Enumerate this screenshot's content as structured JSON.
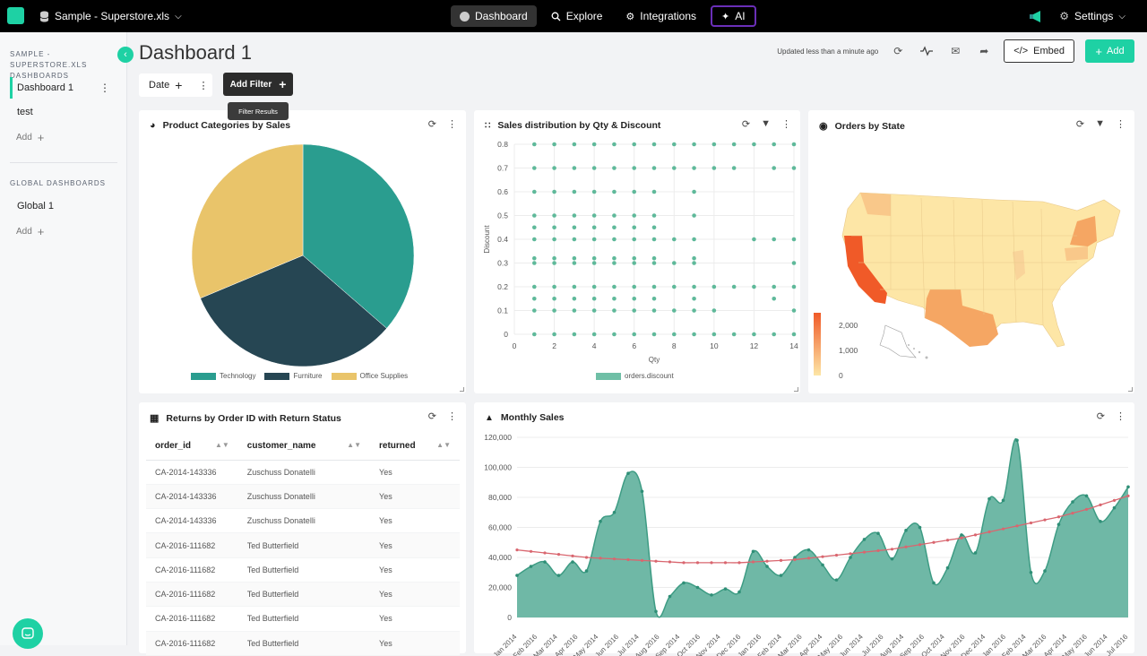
{
  "topbar": {
    "datasource": "Sample - Superstore.xls",
    "nav": [
      {
        "label": "Dashboard",
        "icon": "dashboard-icon"
      },
      {
        "label": "Explore",
        "icon": "search-icon"
      },
      {
        "label": "Integrations",
        "icon": "integrations-icon"
      },
      {
        "label": "AI",
        "icon": "sparkle-icon"
      }
    ],
    "settings_label": "Settings"
  },
  "sidebar": {
    "section1_title_line1": "SAMPLE - SUPERSTORE.XLS",
    "section1_title_line2": "DASHBOARDS",
    "dashboards": [
      "Dashboard 1",
      "test"
    ],
    "add_label": "Add",
    "section2_title": "GLOBAL DASHBOARDS",
    "global_dashboards": [
      "Global 1"
    ],
    "add_label2": "Add"
  },
  "header": {
    "title": "Dashboard 1",
    "updated": "Updated less than a minute ago",
    "embed_label": "Embed",
    "add_label": "Add"
  },
  "filters": {
    "date_label": "Date",
    "add_filter_label": "Add Filter",
    "tooltip": "Filter Results"
  },
  "colors": {
    "accent": "#1ed1a4",
    "teal": "#2a9d8f",
    "navy": "#264653",
    "yellow": "#e9c46a",
    "scatter": "#5fb99a",
    "area": "#6fb8a6",
    "trend": "#d9666f"
  },
  "cards": {
    "pie_title": "Product Categories by Sales",
    "scatter_title": "Sales distribution by Qty & Discount",
    "map_title": "Orders by State",
    "table_title": "Returns by Order ID with Return Status",
    "monthly_title": "Monthly Sales"
  },
  "chart_data": [
    {
      "type": "pie",
      "title": "Product Categories by Sales",
      "categories": [
        "Technology",
        "Furniture",
        "Office Supplies"
      ],
      "values": [
        36.4,
        32.3,
        31.3
      ]
    },
    {
      "type": "scatter",
      "title": "Sales distribution by Qty & Discount",
      "xlabel": "Qty",
      "ylabel": "Discount",
      "xlim": [
        0,
        14
      ],
      "ylim": [
        0,
        0.8
      ],
      "xticks": [
        "0",
        "2",
        "4",
        "6",
        "8",
        "10",
        "12",
        "14"
      ],
      "yticks": [
        "0",
        "0.1",
        "0.2",
        "0.3",
        "0.4",
        "0.5",
        "0.6",
        "0.7",
        "0.8"
      ],
      "legend": "orders.discount",
      "series": [
        {
          "name": "orders.discount",
          "points": [
            [
              1,
              0
            ],
            [
              2,
              0
            ],
            [
              3,
              0
            ],
            [
              4,
              0
            ],
            [
              5,
              0
            ],
            [
              6,
              0
            ],
            [
              7,
              0
            ],
            [
              8,
              0
            ],
            [
              9,
              0
            ],
            [
              10,
              0
            ],
            [
              11,
              0
            ],
            [
              12,
              0
            ],
            [
              13,
              0
            ],
            [
              14,
              0
            ],
            [
              1,
              0.1
            ],
            [
              2,
              0.1
            ],
            [
              3,
              0.1
            ],
            [
              4,
              0.1
            ],
            [
              5,
              0.1
            ],
            [
              6,
              0.1
            ],
            [
              7,
              0.1
            ],
            [
              8,
              0.1
            ],
            [
              9,
              0.1
            ],
            [
              10,
              0.1
            ],
            [
              14,
              0.1
            ],
            [
              1,
              0.15
            ],
            [
              2,
              0.15
            ],
            [
              3,
              0.15
            ],
            [
              4,
              0.15
            ],
            [
              5,
              0.15
            ],
            [
              6,
              0.15
            ],
            [
              7,
              0.15
            ],
            [
              9,
              0.15
            ],
            [
              13,
              0.15
            ],
            [
              1,
              0.2
            ],
            [
              2,
              0.2
            ],
            [
              3,
              0.2
            ],
            [
              4,
              0.2
            ],
            [
              5,
              0.2
            ],
            [
              6,
              0.2
            ],
            [
              7,
              0.2
            ],
            [
              8,
              0.2
            ],
            [
              9,
              0.2
            ],
            [
              10,
              0.2
            ],
            [
              11,
              0.2
            ],
            [
              12,
              0.2
            ],
            [
              13,
              0.2
            ],
            [
              14,
              0.2
            ],
            [
              1,
              0.3
            ],
            [
              2,
              0.3
            ],
            [
              3,
              0.3
            ],
            [
              4,
              0.3
            ],
            [
              5,
              0.3
            ],
            [
              6,
              0.3
            ],
            [
              7,
              0.3
            ],
            [
              8,
              0.3
            ],
            [
              9,
              0.3
            ],
            [
              14,
              0.3
            ],
            [
              1,
              0.32
            ],
            [
              2,
              0.32
            ],
            [
              3,
              0.32
            ],
            [
              4,
              0.32
            ],
            [
              5,
              0.32
            ],
            [
              6,
              0.32
            ],
            [
              7,
              0.32
            ],
            [
              9,
              0.32
            ],
            [
              1,
              0.4
            ],
            [
              2,
              0.4
            ],
            [
              3,
              0.4
            ],
            [
              4,
              0.4
            ],
            [
              5,
              0.4
            ],
            [
              6,
              0.4
            ],
            [
              7,
              0.4
            ],
            [
              8,
              0.4
            ],
            [
              9,
              0.4
            ],
            [
              12,
              0.4
            ],
            [
              13,
              0.4
            ],
            [
              14,
              0.4
            ],
            [
              1,
              0.45
            ],
            [
              2,
              0.45
            ],
            [
              3,
              0.45
            ],
            [
              4,
              0.45
            ],
            [
              5,
              0.45
            ],
            [
              6,
              0.45
            ],
            [
              7,
              0.45
            ],
            [
              1,
              0.5
            ],
            [
              2,
              0.5
            ],
            [
              3,
              0.5
            ],
            [
              4,
              0.5
            ],
            [
              5,
              0.5
            ],
            [
              6,
              0.5
            ],
            [
              7,
              0.5
            ],
            [
              9,
              0.5
            ],
            [
              1,
              0.6
            ],
            [
              2,
              0.6
            ],
            [
              3,
              0.6
            ],
            [
              4,
              0.6
            ],
            [
              5,
              0.6
            ],
            [
              6,
              0.6
            ],
            [
              7,
              0.6
            ],
            [
              9,
              0.6
            ],
            [
              1,
              0.7
            ],
            [
              2,
              0.7
            ],
            [
              3,
              0.7
            ],
            [
              4,
              0.7
            ],
            [
              5,
              0.7
            ],
            [
              6,
              0.7
            ],
            [
              7,
              0.7
            ],
            [
              8,
              0.7
            ],
            [
              9,
              0.7
            ],
            [
              10,
              0.7
            ],
            [
              11,
              0.7
            ],
            [
              13,
              0.7
            ],
            [
              14,
              0.7
            ],
            [
              1,
              0.8
            ],
            [
              2,
              0.8
            ],
            [
              3,
              0.8
            ],
            [
              4,
              0.8
            ],
            [
              5,
              0.8
            ],
            [
              6,
              0.8
            ],
            [
              7,
              0.8
            ],
            [
              8,
              0.8
            ],
            [
              9,
              0.8
            ],
            [
              10,
              0.8
            ],
            [
              11,
              0.8
            ],
            [
              12,
              0.8
            ],
            [
              13,
              0.8
            ],
            [
              14,
              0.8
            ]
          ]
        }
      ]
    },
    {
      "type": "map",
      "title": "Orders by State",
      "legend_ticks": [
        "2,000",
        "1,000",
        "0"
      ],
      "color_low": "#fde6a6",
      "color_high": "#f05a28"
    },
    {
      "type": "table",
      "title": "Returns by Order ID with Return Status",
      "columns": [
        "order_id",
        "customer_name",
        "returned"
      ],
      "rows": [
        [
          "CA-2014-143336",
          "Zuschuss Donatelli",
          "Yes"
        ],
        [
          "CA-2014-143336",
          "Zuschuss Donatelli",
          "Yes"
        ],
        [
          "CA-2014-143336",
          "Zuschuss Donatelli",
          "Yes"
        ],
        [
          "CA-2016-111682",
          "Ted Butterfield",
          "Yes"
        ],
        [
          "CA-2016-111682",
          "Ted Butterfield",
          "Yes"
        ],
        [
          "CA-2016-111682",
          "Ted Butterfield",
          "Yes"
        ],
        [
          "CA-2016-111682",
          "Ted Butterfield",
          "Yes"
        ],
        [
          "CA-2016-111682",
          "Ted Butterfield",
          "Yes"
        ]
      ]
    },
    {
      "type": "area",
      "title": "Monthly Sales",
      "ylim": [
        0,
        120000
      ],
      "yticks": [
        "0",
        "20,000",
        "40,000",
        "60,000",
        "80,000",
        "100,000",
        "120,000"
      ],
      "xtick_labels": [
        "Jan 2014",
        "Feb 2016",
        "Mar 2014",
        "Apr 2016",
        "May 2014",
        "Jun 2016",
        "Jul 2014",
        "Aug 2016",
        "Sep 2014",
        "Oct 2016",
        "Nov 2014",
        "Dec 2016",
        "Jan 2016",
        "Feb 2014",
        "Mar 2016",
        "Apr 2014",
        "May 2016",
        "Jun 2014",
        "Jul 2016",
        "Aug 2014",
        "Sep 2016",
        "Oct 2014",
        "Nov 2016",
        "Dec 2014",
        "Jan 2016",
        "Feb 2014",
        "Mar 2016",
        "Apr 2014",
        "May 2016",
        "Jun 2014",
        "Jul 2016"
      ],
      "series": [
        {
          "name": "sales",
          "values": [
            28000,
            34000,
            37000,
            28000,
            37000,
            31000,
            64000,
            70000,
            96000,
            84000,
            4000,
            14000,
            23000,
            20000,
            15000,
            19000,
            17000,
            44000,
            34000,
            28000,
            40000,
            45000,
            35000,
            25000,
            40000,
            52000,
            56000,
            39000,
            58000,
            60000,
            23000,
            33000,
            55000,
            43000,
            79000,
            78000,
            118000,
            30000,
            31000,
            62000,
            77000,
            81000,
            64000,
            73000,
            87000
          ]
        },
        {
          "name": "trend",
          "values": [
            45000,
            44000,
            43000,
            42000,
            41000,
            40000,
            39500,
            39000,
            38500,
            38000,
            37500,
            37000,
            36500,
            36500,
            36500,
            36500,
            36500,
            37000,
            37500,
            38000,
            38500,
            39500,
            40500,
            41500,
            42500,
            43500,
            44500,
            45500,
            47000,
            48500,
            50000,
            51500,
            53000,
            55000,
            57000,
            59000,
            61000,
            63000,
            65000,
            67000,
            69500,
            72000,
            75000,
            78000,
            81000
          ]
        }
      ]
    }
  ]
}
